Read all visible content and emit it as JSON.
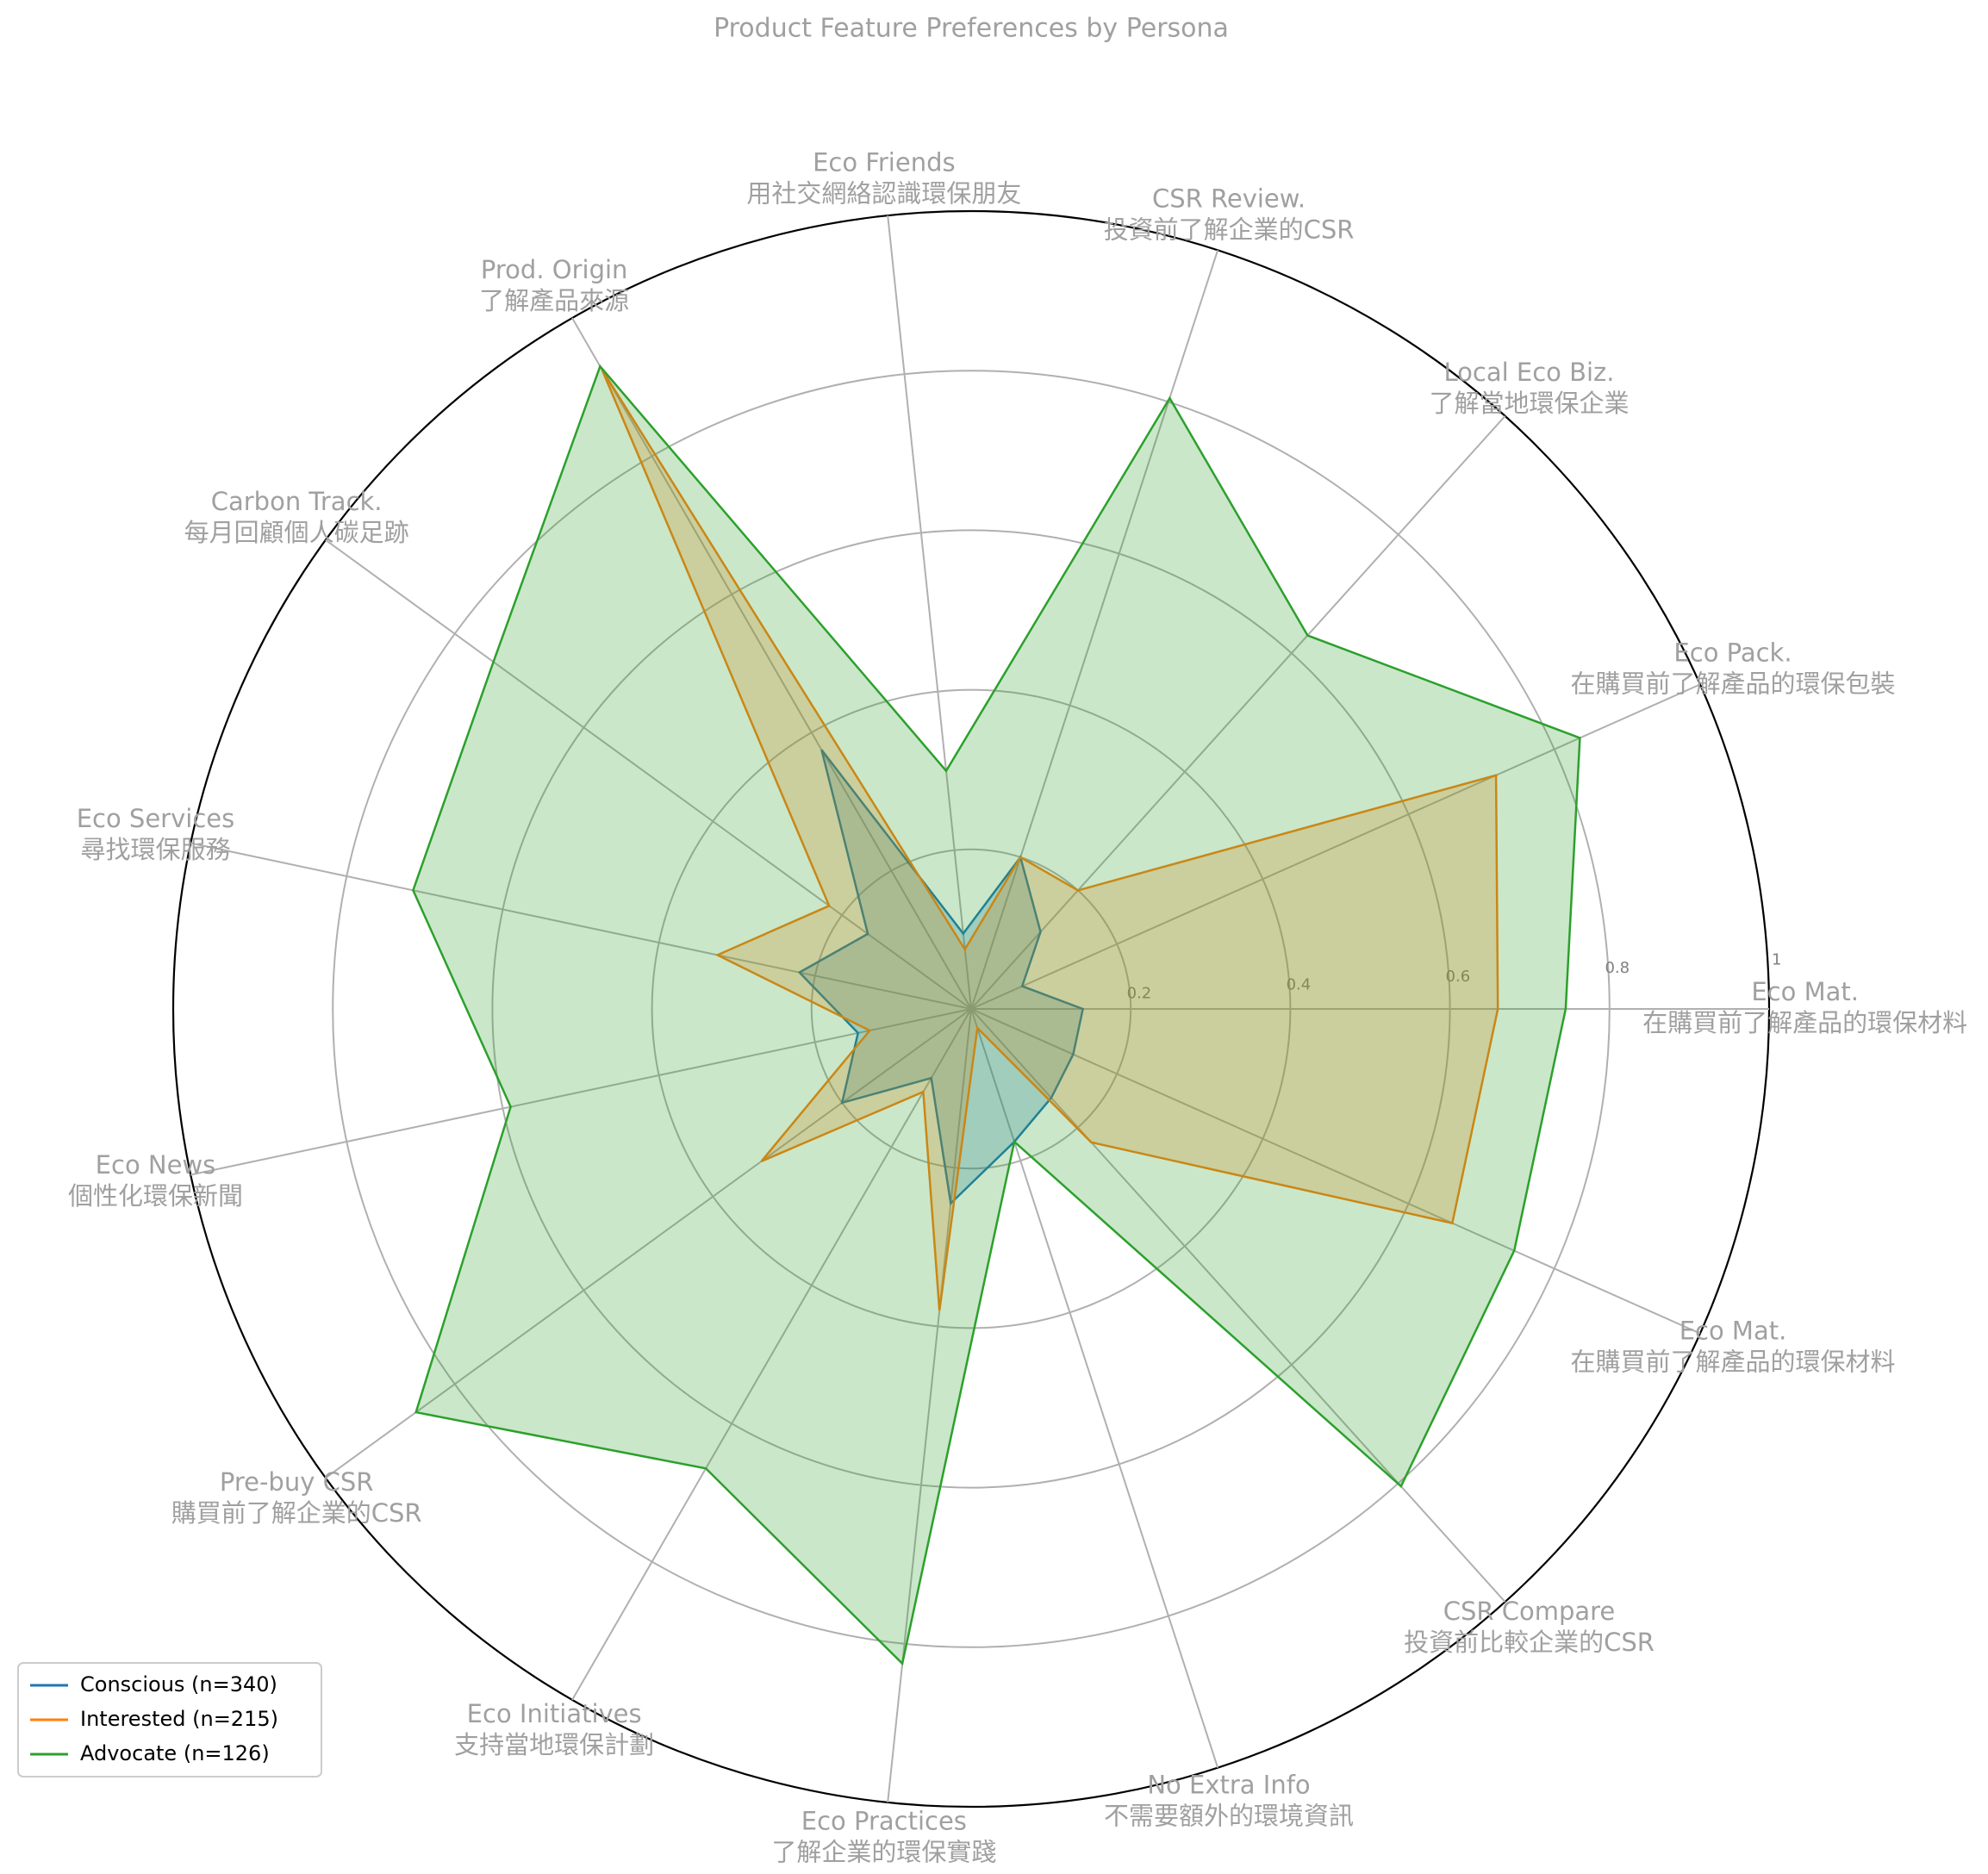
{
  "chart_data": {
    "type": "radar",
    "title": "Product Feature Preferences by Persona",
    "categories": [
      "Eco Mat.",
      "Eco Pack.",
      "Local Eco Biz.",
      "CSR Review.",
      "Eco Friends",
      "Prod. Origin",
      "Carbon Track.",
      "Eco Services",
      "Eco News",
      "Pre-buy CSR",
      "Eco Initiatives",
      "Eco Practices",
      "No Extra Info",
      "CSR Compare",
      "Eco Mat."
    ],
    "category_subtitles": [
      "在購買前了解產品的環保材料",
      "在購買前了解產品的環保包裝",
      "了解當地環保企業",
      "投資前了解企業的CSR",
      "用社交網絡認識環保朋友",
      "了解產品來源",
      "每月回顧個人碳足跡",
      "尋找環保服務",
      "個性化環保新聞",
      "購買前了解企業的CSR",
      "支持當地環保計劃",
      "了解企業的環保實踐",
      "不需要額外的環境資訊",
      "投資前比較企業的CSR",
      "在購買前了解產品的環保材料"
    ],
    "series": [
      {
        "name": "Conscious (n=340)",
        "color": "#1f77b4",
        "values": [
          0.14,
          0.07,
          0.13,
          0.2,
          0.095,
          0.375,
          0.16,
          0.22,
          0.145,
          0.2,
          0.1,
          0.245,
          0.175,
          0.15,
          0.14
        ]
      },
      {
        "name": "Interested (n=215)",
        "color": "#ff7f0e",
        "values": [
          0.66,
          0.72,
          0.2,
          0.2,
          0.075,
          0.925,
          0.22,
          0.325,
          0.13,
          0.325,
          0.12,
          0.38,
          0.025,
          0.225,
          0.66
        ]
      },
      {
        "name": "Advocate (n=126)",
        "color": "#2ca02c",
        "values": [
          0.745,
          0.835,
          0.63,
          0.805,
          0.3,
          0.93,
          0.74,
          0.715,
          0.59,
          0.86,
          0.665,
          0.825,
          0.175,
          0.805,
          0.745
        ]
      }
    ],
    "ylim": [
      0,
      1
    ],
    "yticks": [
      0.2,
      0.4,
      0.6,
      0.8,
      1
    ],
    "grid": true,
    "legend": "lower left"
  }
}
